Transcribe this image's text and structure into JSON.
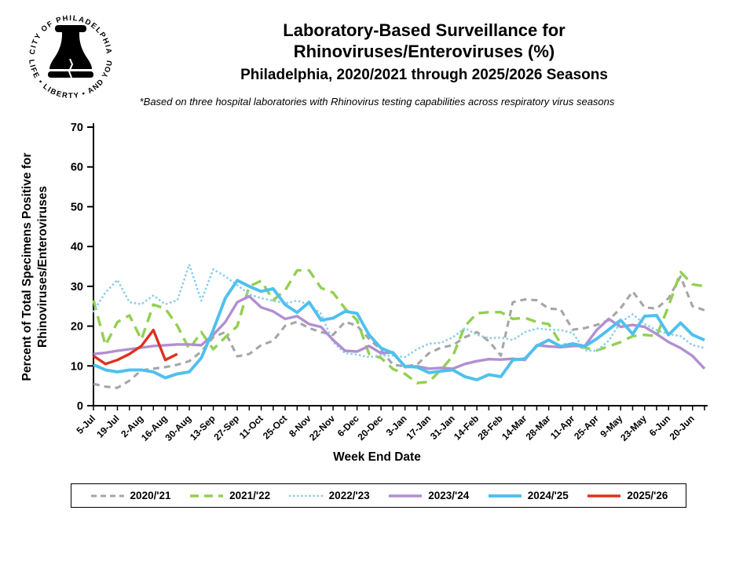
{
  "header": {
    "title_line1": "Laboratory-Based Surveillance for",
    "title_line2": "Rhinoviruses/Enteroviruses (%)",
    "title_line3": "Philadelphia, 2020/2021 through 2025/2026 Seasons",
    "footnote": "*Based on three hospital laboratories with Rhinovirus testing capabilities across respiratory virus seasons"
  },
  "logo": {
    "top_text": "• CITY OF PHILADELPHIA •",
    "bottom_text": "LIFE • LIBERTY • AND YOU"
  },
  "chart_data": {
    "type": "line",
    "title": "Laboratory-Based Surveillance for Rhinoviruses/Enteroviruses (%), Philadelphia, 2020/2021 through 2025/2026 Seasons",
    "xlabel": "Week End Date",
    "ylabel": "Percent of Total Specimens Positive for Rhinoviruses/Enteroviruses",
    "ylabel_lines": [
      "Percent of Total Specimens Positive for",
      "Rhinoviruses/Enteroviruses"
    ],
    "ylim": [
      0,
      70
    ],
    "y_ticks": [
      0,
      10,
      20,
      30,
      40,
      50,
      60,
      70
    ],
    "n_points": 52,
    "weeks_per_label": 2,
    "grid": "off",
    "legend_position": "bottom",
    "x_tick_labels": [
      "5-Jul",
      "19-Jul",
      "2-Aug",
      "16-Aug",
      "30-Aug",
      "13-Sep",
      "27-Sep",
      "11-Oct",
      "25-Oct",
      "8-Nov",
      "22-Nov",
      "6-Dec",
      "20-Dec",
      "3-Jan",
      "17-Jan",
      "31-Jan",
      "14-Feb",
      "28-Feb",
      "14-Mar",
      "28-Mar",
      "11-Apr",
      "25-Apr",
      "9-May",
      "23-May",
      "6-Jun",
      "20-Jun"
    ],
    "series": [
      {
        "name": "2020/'21",
        "color": "#a6a6a6",
        "style": "dashed",
        "values": [
          5.5,
          4.8,
          4.5,
          6.3,
          8.9,
          9.3,
          9.7,
          10.3,
          11.2,
          13.6,
          17.2,
          18.5,
          12.4,
          13,
          15.2,
          16.3,
          20.1,
          21.1,
          19.5,
          18.5,
          17.8,
          21.1,
          20.1,
          16.8,
          14,
          10.3,
          9.9,
          10.3,
          13.2,
          14.6,
          15.2,
          17.2,
          18.5,
          16.2,
          12.6,
          26,
          26.7,
          26.5,
          24.4,
          24.2,
          19.1,
          19.5,
          20.3,
          21.5,
          24.5,
          28.7,
          24.7,
          24.4,
          27,
          32.5,
          25,
          24
        ]
      },
      {
        "name": "2021/'22",
        "color": "#92d050",
        "style": "long-dash",
        "values": [
          26.5,
          15.2,
          21,
          22.7,
          16.6,
          25.4,
          24.4,
          20.1,
          14.2,
          18.5,
          14.2,
          17.2,
          20,
          30,
          31.4,
          26.5,
          29,
          34,
          34,
          29.6,
          28.4,
          24.4,
          21.5,
          13,
          12,
          9.2,
          8,
          5.7,
          6,
          9,
          12.5,
          20,
          23.2,
          23.5,
          23.5,
          21.8,
          22.1,
          21,
          20.5,
          15.6,
          15,
          14.6,
          13.9,
          14.9,
          16,
          17.5,
          17.8,
          17.5,
          25,
          33.6,
          30.5,
          30
        ]
      },
      {
        "name": "2022/'23",
        "color": "#8ccfee",
        "style": "dotted",
        "values": [
          23.7,
          28.5,
          31.6,
          26,
          25.5,
          27.7,
          25.5,
          26.5,
          35.5,
          26.4,
          34.3,
          32.5,
          30.3,
          28,
          27,
          26.4,
          25.7,
          26.4,
          25.4,
          23.1,
          16,
          13.2,
          12.8,
          12.2,
          12.6,
          12.6,
          12.2,
          14.2,
          15.6,
          15.8,
          17.2,
          19.5,
          17.8,
          17,
          17.1,
          16.5,
          18.5,
          19.4,
          19.1,
          19,
          18.3,
          13.9,
          13.8,
          16.3,
          21,
          23,
          20.5,
          19,
          18,
          17.5,
          15.2,
          14.5
        ]
      },
      {
        "name": "2023/'24",
        "color": "#b18fd0",
        "style": "solid",
        "values": [
          13,
          13.3,
          13.8,
          14.2,
          14.6,
          15,
          15.2,
          15.4,
          15.4,
          15.2,
          17.8,
          21,
          26,
          27.5,
          24.7,
          23.7,
          21.8,
          22.5,
          20.5,
          19.8,
          16.5,
          13.8,
          13.6,
          15,
          13.2,
          13.4,
          9.7,
          9.9,
          9.3,
          9.5,
          9.3,
          10.5,
          11.2,
          11.7,
          11.6,
          11.8,
          11.5,
          15.2,
          14.9,
          14.7,
          15,
          15,
          19,
          21.8,
          19.8,
          20.3,
          19.8,
          18,
          16,
          14.5,
          12.5,
          9.3
        ]
      },
      {
        "name": "2024/'25",
        "color": "#4fc0ee",
        "style": "solid-thick",
        "values": [
          10.3,
          9,
          8.5,
          9,
          9,
          8.5,
          7,
          8,
          8.5,
          12,
          19,
          27,
          31.5,
          30,
          28.7,
          29.4,
          25.4,
          23.4,
          26,
          21.5,
          22,
          23.7,
          23.2,
          17.8,
          14.5,
          13.2,
          9.9,
          9.7,
          8.3,
          8.7,
          9,
          7.3,
          6.5,
          7.8,
          7.3,
          11.5,
          11.8,
          15,
          16.5,
          14.9,
          15.6,
          14.9,
          16.8,
          19.1,
          21.5,
          18,
          22.5,
          22.7,
          17.8,
          20.8,
          17.8,
          16.5
        ]
      },
      {
        "name": "2025/'26",
        "color": "#e0301e",
        "style": "solid",
        "values": [
          12.5,
          10.5,
          11.5,
          13,
          15,
          19,
          11.5,
          13
        ]
      }
    ]
  }
}
